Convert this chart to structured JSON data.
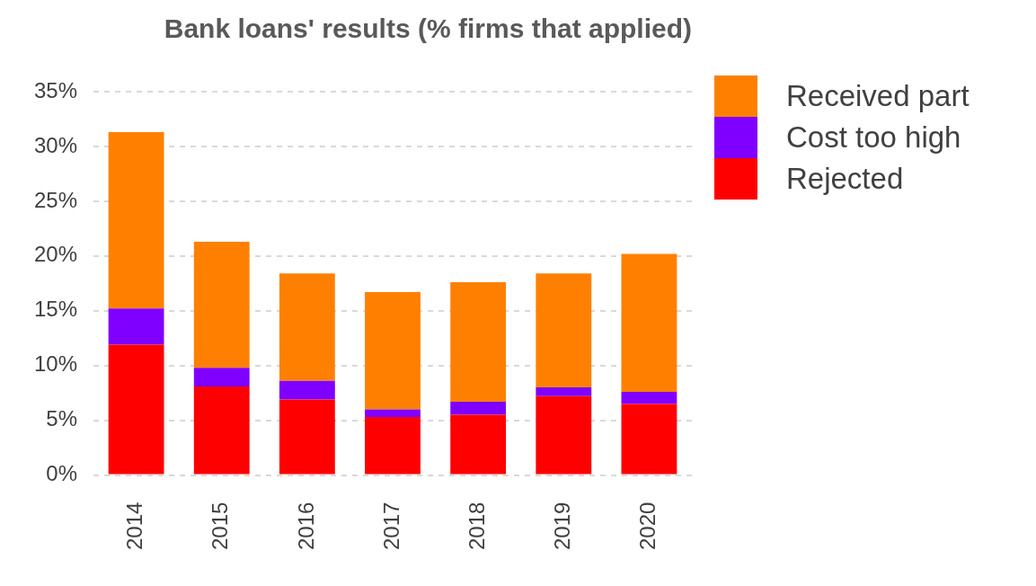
{
  "chart_data": {
    "type": "bar",
    "title": "Bank loans' results (% firms that applied)",
    "stacked": true,
    "categories": [
      "2014",
      "2015",
      "2016",
      "2017",
      "2018",
      "2019",
      "2020"
    ],
    "series": [
      {
        "name": "Rejected",
        "color": "#ff0000",
        "values": [
          11.9,
          8.1,
          6.9,
          5.3,
          5.5,
          7.2,
          6.5
        ]
      },
      {
        "name": "Cost too high",
        "color": "#8000ff",
        "values": [
          3.3,
          1.7,
          1.7,
          0.7,
          1.2,
          0.8,
          1.1
        ]
      },
      {
        "name": "Received part",
        "color": "#ff8000",
        "values": [
          16.1,
          11.5,
          9.8,
          10.7,
          10.9,
          10.4,
          12.6
        ]
      }
    ],
    "ylim": [
      0,
      35
    ],
    "yticks": [
      {
        "value": 0,
        "label": "0%"
      },
      {
        "value": 5,
        "label": "5%"
      },
      {
        "value": 10,
        "label": "10%"
      },
      {
        "value": 15,
        "label": "15%"
      },
      {
        "value": 20,
        "label": "20%"
      },
      {
        "value": 25,
        "label": "25%"
      },
      {
        "value": 30,
        "label": "30%"
      },
      {
        "value": 35,
        "label": "35%"
      }
    ],
    "grid": "y",
    "legend": "top right"
  }
}
